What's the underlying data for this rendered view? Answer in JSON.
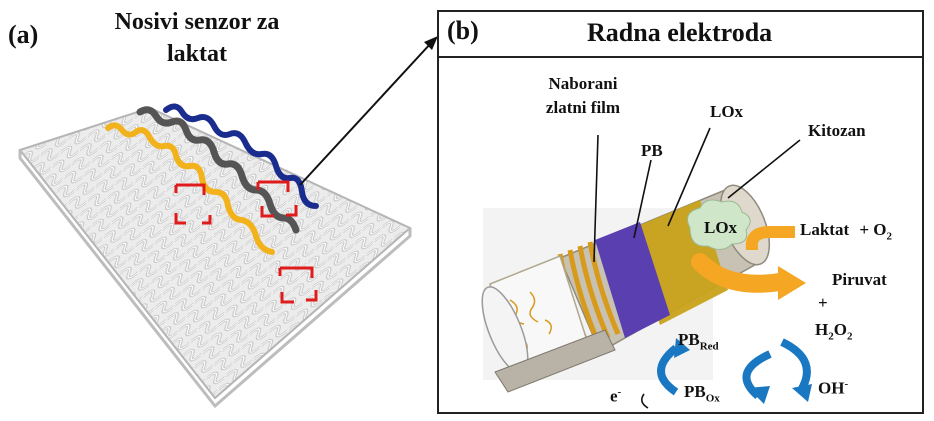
{
  "panel_a": {
    "letter": "(a)",
    "title": "Nosivi senzor za laktat"
  },
  "panel_b": {
    "letter": "(b)",
    "title": "Radna elektroda",
    "labels": {
      "gold_film": "Naborani zlatni film",
      "pb": "PB",
      "lox_top": "LOx",
      "chitosan": "Kitozan",
      "lox_blob": "LOx",
      "lactate": "Laktat",
      "plus_o2": "+ O",
      "o2_sub": "2",
      "pyruvate": "Piruvat",
      "plus": "+",
      "h2o2_h": "H",
      "h2o2_sub1": "2",
      "h2o2_o": "O",
      "h2o2_sub2": "2",
      "pb_red": "PB",
      "pb_red_sub": "Red",
      "pb_ox": "PB",
      "pb_ox_sub": "Ox",
      "electron": "e",
      "electron_sup": "-",
      "oh": "OH",
      "oh_sup": "-"
    }
  },
  "colors": {
    "fabric": "#d9d9d9",
    "fabric_edge": "#a8a8a8",
    "yellow_thread": "#f2b21c",
    "dark_thread": "#555555",
    "blue_thread": "#1a2d8f",
    "marker_red": "#e01b1b",
    "gold_ring": "#d89a1a",
    "pb_ring": "#5a3fb0",
    "lox_ring": "#c9a21a",
    "chitosan_shell": "#c7c2b4",
    "lox_blob": "#cfe6c8",
    "arrow_orange": "#f5a623",
    "arrow_blue": "#1a78c2"
  }
}
